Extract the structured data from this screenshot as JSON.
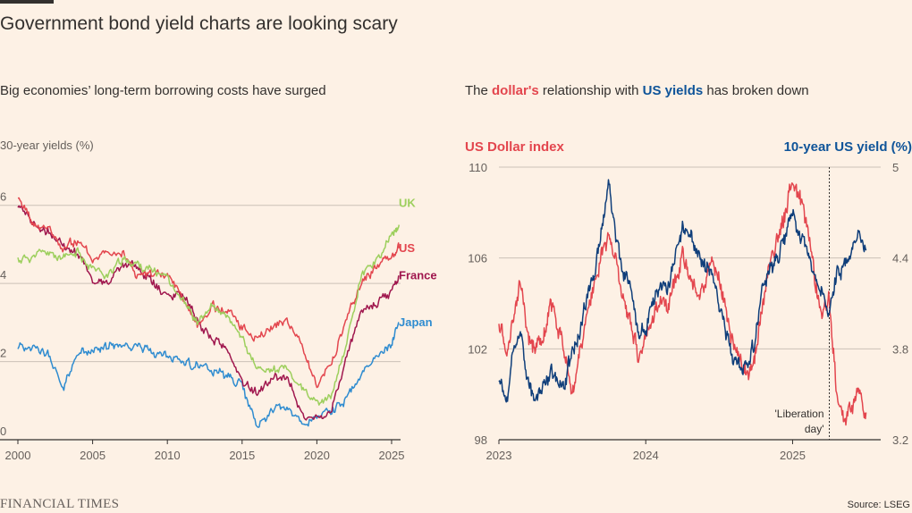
{
  "headline": "Government bond yield charts are looking scary",
  "left": {
    "title": "Big economies’ long-term borrowing costs have surged",
    "unit_label": "30-year yields (%)"
  },
  "right": {
    "title_pre": "The ",
    "title_dollar": "dollar's",
    "title_mid": " relationship with ",
    "title_us": "US yields",
    "title_post": " has broken down",
    "left_axis_title": "US Dollar index",
    "right_axis_title": "10-year US yield (%)"
  },
  "footer": {
    "brand": "FINANCIAL TIMES",
    "source": "Source: LSEG"
  },
  "colors": {
    "uk": "#9dcf5d",
    "us": "#e3464e",
    "france": "#a0174e",
    "japan": "#2f8cd0",
    "dollar": "#e3464e",
    "us_yield": "#0f3e7a",
    "grid": "#ccc1b7",
    "text": "#33302e"
  },
  "chart_data": [
    {
      "type": "line",
      "ylabel": "30-year yields (%)",
      "xlim": [
        2000,
        2025.6
      ],
      "ylim": [
        0,
        7
      ],
      "x_ticks": [
        2000,
        2005,
        2010,
        2015,
        2020,
        2025
      ],
      "y_ticks": [
        0,
        2,
        4,
        6
      ],
      "grid": true,
      "x": [
        2000,
        2001,
        2002,
        2003,
        2004,
        2005,
        2006,
        2007,
        2008,
        2009,
        2010,
        2011,
        2012,
        2013,
        2014,
        2015,
        2016,
        2017,
        2018,
        2019,
        2020,
        2021,
        2022,
        2023,
        2024,
        2025,
        2025.5
      ],
      "series": [
        {
          "name": "UK",
          "values": [
            4.6,
            4.7,
            4.8,
            4.6,
            4.8,
            4.4,
            4.2,
            4.6,
            4.5,
            4.3,
            4.2,
            3.6,
            3.0,
            3.4,
            3.1,
            2.6,
            1.8,
            1.8,
            1.8,
            1.3,
            0.9,
            1.1,
            2.5,
            4.3,
            4.6,
            5.2,
            5.5
          ]
        },
        {
          "name": "US",
          "values": [
            6.2,
            5.5,
            5.4,
            4.9,
            5.1,
            4.6,
            4.9,
            4.8,
            4.2,
            4.2,
            4.2,
            3.7,
            2.9,
            3.4,
            3.3,
            2.9,
            2.6,
            2.9,
            3.1,
            2.4,
            1.4,
            2.0,
            3.1,
            4.0,
            4.4,
            4.7,
            4.9
          ]
        },
        {
          "name": "France",
          "values": [
            5.9,
            5.5,
            5.3,
            5.0,
            4.8,
            4.1,
            4.0,
            4.5,
            4.4,
            4.0,
            3.7,
            3.8,
            3.0,
            2.6,
            2.3,
            1.5,
            1.2,
            1.6,
            1.6,
            0.7,
            0.5,
            0.7,
            2.2,
            3.3,
            3.5,
            3.8,
            4.2
          ]
        },
        {
          "name": "Japan",
          "values": [
            2.4,
            2.4,
            2.2,
            1.3,
            2.2,
            2.3,
            2.4,
            2.4,
            2.4,
            2.3,
            2.1,
            2.0,
            1.9,
            1.7,
            1.6,
            1.4,
            0.3,
            0.8,
            0.8,
            0.4,
            0.6,
            0.7,
            1.1,
            1.6,
            2.1,
            2.5,
            3.0
          ]
        }
      ]
    },
    {
      "type": "line",
      "xlim": [
        2023.0,
        2025.6
      ],
      "x_ticks": [
        2023,
        2024,
        2025
      ],
      "y_ticks_left": [
        98,
        102,
        106,
        110
      ],
      "y_ticks_right": [
        3.2,
        3.8,
        4.4,
        5
      ],
      "ylim_left": [
        98,
        110
      ],
      "ylim_right": [
        3.2,
        5.0
      ],
      "grid": true,
      "annotation": {
        "text": "'Liberation day'",
        "x": 2025.25
      },
      "series": [
        {
          "name": "US Dollar index",
          "axis": "left",
          "x": [
            2023.0,
            2023.05,
            2023.1,
            2023.15,
            2023.2,
            2023.25,
            2023.3,
            2023.35,
            2023.4,
            2023.45,
            2023.5,
            2023.55,
            2023.6,
            2023.65,
            2023.7,
            2023.75,
            2023.8,
            2023.85,
            2023.9,
            2023.95,
            2024.0,
            2024.05,
            2024.1,
            2024.15,
            2024.2,
            2024.25,
            2024.3,
            2024.35,
            2024.4,
            2024.45,
            2024.5,
            2024.55,
            2024.6,
            2024.65,
            2024.7,
            2024.75,
            2024.8,
            2024.85,
            2024.9,
            2024.95,
            2025.0,
            2025.05,
            2025.1,
            2025.15,
            2025.2,
            2025.25,
            2025.3,
            2025.35,
            2025.4,
            2025.45,
            2025.5
          ],
          "values": [
            103.5,
            101.8,
            103.5,
            105.0,
            102.5,
            101.8,
            102.5,
            104.0,
            103.2,
            102.0,
            100.2,
            101.5,
            103.5,
            104.8,
            106.2,
            106.8,
            105.8,
            104.0,
            103.0,
            101.5,
            102.5,
            103.5,
            104.2,
            103.8,
            104.8,
            106.0,
            105.2,
            104.5,
            105.0,
            105.8,
            105.0,
            103.5,
            102.2,
            101.2,
            100.8,
            102.0,
            104.0,
            105.8,
            106.8,
            108.0,
            109.5,
            108.5,
            107.5,
            105.0,
            103.5,
            104.2,
            100.0,
            99.2,
            99.4,
            100.5,
            99.2
          ]
        },
        {
          "name": "10-year US yield (%)",
          "axis": "right",
          "x": [
            2023.0,
            2023.05,
            2023.1,
            2023.15,
            2023.2,
            2023.25,
            2023.3,
            2023.35,
            2023.4,
            2023.45,
            2023.5,
            2023.55,
            2023.6,
            2023.65,
            2023.7,
            2023.75,
            2023.8,
            2023.85,
            2023.9,
            2023.95,
            2024.0,
            2024.05,
            2024.1,
            2024.15,
            2024.2,
            2024.25,
            2024.3,
            2024.35,
            2024.4,
            2024.45,
            2024.5,
            2024.55,
            2024.6,
            2024.65,
            2024.7,
            2024.75,
            2024.8,
            2024.85,
            2024.9,
            2024.95,
            2025.0,
            2025.05,
            2025.1,
            2025.15,
            2025.2,
            2025.25,
            2025.3,
            2025.35,
            2025.4,
            2025.45,
            2025.5
          ],
          "values": [
            3.6,
            3.45,
            3.8,
            3.9,
            3.6,
            3.45,
            3.55,
            3.65,
            3.6,
            3.55,
            3.8,
            3.9,
            4.15,
            4.3,
            4.6,
            4.9,
            4.5,
            4.3,
            4.2,
            3.9,
            3.9,
            4.1,
            4.25,
            4.2,
            4.4,
            4.6,
            4.55,
            4.45,
            4.35,
            4.3,
            4.1,
            3.9,
            3.75,
            3.65,
            3.7,
            3.9,
            4.2,
            4.3,
            4.4,
            4.55,
            4.7,
            4.55,
            4.45,
            4.25,
            4.2,
            4.0,
            4.3,
            4.35,
            4.4,
            4.55,
            4.45
          ]
        }
      ]
    }
  ]
}
